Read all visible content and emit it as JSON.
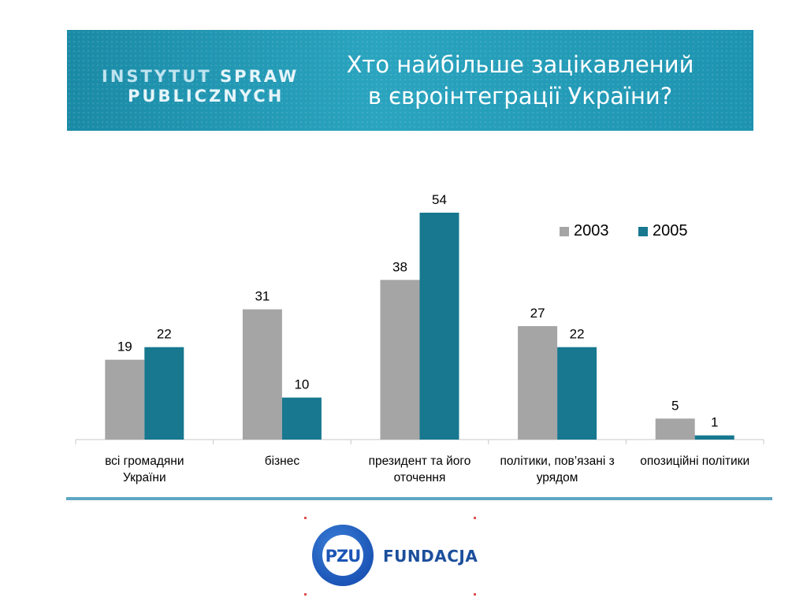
{
  "banner": {
    "logo_line1_a": "INSTYTUT",
    "logo_line1_b": "SPRAW",
    "logo_line2": "PUBLICZNYCH",
    "title_line1": "Хто найбільше зацікавлений",
    "title_line2": "в євроінтеграції України?"
  },
  "footer": {
    "pzu_logo": "PZU",
    "fundacja": "FUNDACJA"
  },
  "colors": {
    "series_2003": "#a5a5a5",
    "series_2005": "#17788f",
    "axis": "#c8c8c8",
    "text": "#000000"
  },
  "chart_data": {
    "type": "bar",
    "categories": [
      [
        "всі громадяни",
        "України"
      ],
      [
        "бізнес"
      ],
      [
        "президент та його",
        "оточення"
      ],
      [
        "політики, пов’язані з",
        "урядом"
      ],
      [
        "опозиційні політики"
      ]
    ],
    "series": [
      {
        "name": "2003",
        "values": [
          19,
          31,
          38,
          27,
          5
        ]
      },
      {
        "name": "2005",
        "values": [
          22,
          10,
          54,
          22,
          1
        ]
      }
    ],
    "ylim": [
      0,
      54
    ],
    "legend": "top-right",
    "grid": false
  }
}
